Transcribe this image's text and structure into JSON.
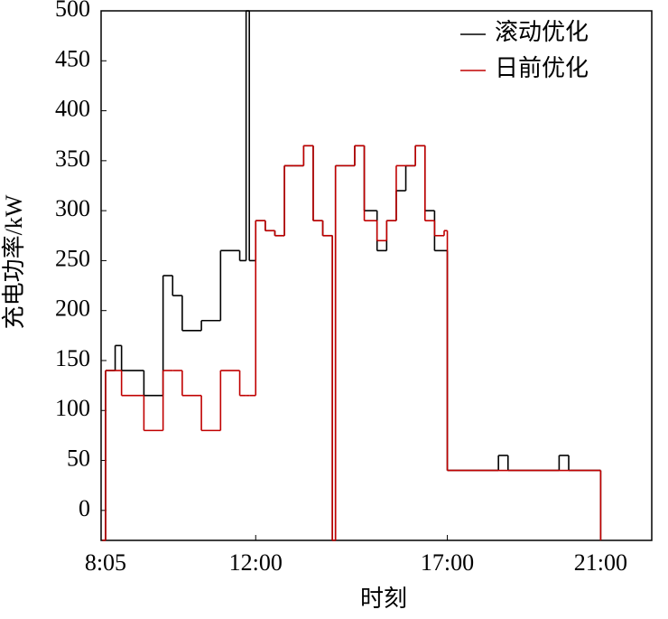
{
  "chart_data": {
    "type": "step",
    "x_label": "时刻",
    "y_label": "充电功率/kW",
    "x": [
      480,
      485,
      500,
      510,
      545,
      575,
      590,
      605,
      635,
      665,
      695,
      705,
      710,
      720,
      735,
      750,
      765,
      780,
      795,
      810,
      825,
      840,
      845,
      875,
      890,
      910,
      925,
      940,
      955,
      970,
      985,
      1000,
      1015,
      1020,
      1100,
      1115,
      1195,
      1210,
      1260
    ],
    "series": [
      {
        "name": "滚动优化",
        "color": "#000000",
        "values": [
          -30,
          140,
          165,
          140,
          115,
          235,
          215,
          180,
          190,
          260,
          250,
          500,
          250,
          290,
          280,
          275,
          345,
          345,
          365,
          290,
          275,
          -30,
          345,
          365,
          300,
          260,
          290,
          320,
          345,
          365,
          300,
          260,
          260,
          40,
          55,
          40,
          55,
          40,
          -30
        ]
      },
      {
        "name": "日前优化",
        "color": "#c00000",
        "values": [
          -30,
          140,
          140,
          115,
          80,
          140,
          140,
          115,
          80,
          140,
          115,
          115,
          115,
          290,
          280,
          275,
          345,
          345,
          365,
          290,
          275,
          -30,
          345,
          365,
          290,
          270,
          290,
          345,
          345,
          365,
          290,
          275,
          280,
          40,
          40,
          40,
          40,
          40,
          -30
        ]
      }
    ],
    "xlim": [
      478,
      1340
    ],
    "xticks": [
      {
        "value": 485,
        "label": "8:05"
      },
      {
        "value": 720,
        "label": "12:00"
      },
      {
        "value": 1020,
        "label": "17:00"
      },
      {
        "value": 1260,
        "label": "21:00"
      }
    ],
    "ylim": [
      -30,
      500
    ],
    "yticks": [
      0,
      50,
      100,
      150,
      200,
      250,
      300,
      350,
      400,
      450,
      500
    ],
    "legend": "upper-right"
  }
}
